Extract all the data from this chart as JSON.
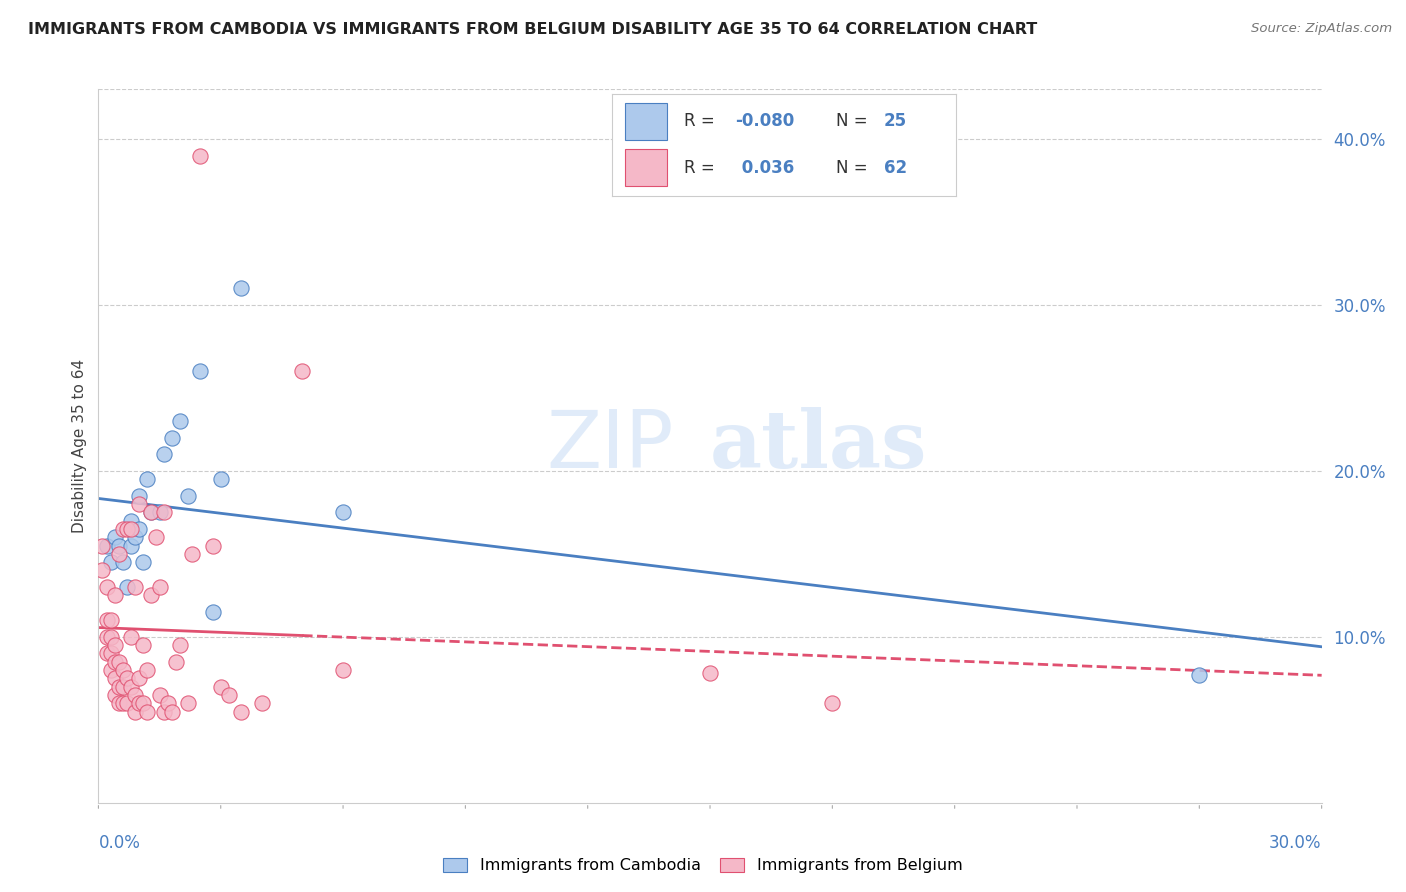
{
  "title": "IMMIGRANTS FROM CAMBODIA VS IMMIGRANTS FROM BELGIUM DISABILITY AGE 35 TO 64 CORRELATION CHART",
  "source": "Source: ZipAtlas.com",
  "ylabel": "Disability Age 35 to 64",
  "right_yticks": [
    "40.0%",
    "30.0%",
    "20.0%",
    "10.0%"
  ],
  "right_ytick_vals": [
    0.4,
    0.3,
    0.2,
    0.1
  ],
  "xmin": 0.0,
  "xmax": 0.3,
  "ymin": 0.0,
  "ymax": 0.43,
  "color_cambodia": "#adc9ec",
  "color_belgium": "#f5b8c8",
  "line_color_cambodia": "#4a7fc1",
  "line_color_belgium": "#e05070",
  "watermark_zip": "ZIP",
  "watermark_atlas": "atlas",
  "cambodia_x": [
    0.002,
    0.003,
    0.004,
    0.005,
    0.006,
    0.007,
    0.008,
    0.008,
    0.009,
    0.01,
    0.01,
    0.011,
    0.012,
    0.013,
    0.015,
    0.016,
    0.018,
    0.02,
    0.022,
    0.025,
    0.028,
    0.03,
    0.035,
    0.06,
    0.27
  ],
  "cambodia_y": [
    0.155,
    0.145,
    0.16,
    0.155,
    0.145,
    0.13,
    0.155,
    0.17,
    0.16,
    0.165,
    0.185,
    0.145,
    0.195,
    0.175,
    0.175,
    0.21,
    0.22,
    0.23,
    0.185,
    0.26,
    0.115,
    0.195,
    0.31,
    0.175,
    0.077
  ],
  "belgium_x": [
    0.001,
    0.001,
    0.002,
    0.002,
    0.002,
    0.002,
    0.003,
    0.003,
    0.003,
    0.003,
    0.004,
    0.004,
    0.004,
    0.004,
    0.004,
    0.005,
    0.005,
    0.005,
    0.005,
    0.006,
    0.006,
    0.006,
    0.006,
    0.007,
    0.007,
    0.007,
    0.008,
    0.008,
    0.008,
    0.009,
    0.009,
    0.009,
    0.01,
    0.01,
    0.01,
    0.011,
    0.011,
    0.012,
    0.012,
    0.013,
    0.013,
    0.014,
    0.015,
    0.015,
    0.016,
    0.016,
    0.017,
    0.018,
    0.019,
    0.02,
    0.022,
    0.023,
    0.025,
    0.028,
    0.03,
    0.032,
    0.035,
    0.04,
    0.05,
    0.06,
    0.15,
    0.18
  ],
  "belgium_y": [
    0.155,
    0.14,
    0.09,
    0.1,
    0.11,
    0.13,
    0.08,
    0.09,
    0.1,
    0.11,
    0.065,
    0.075,
    0.085,
    0.095,
    0.125,
    0.06,
    0.07,
    0.085,
    0.15,
    0.06,
    0.07,
    0.08,
    0.165,
    0.06,
    0.075,
    0.165,
    0.07,
    0.1,
    0.165,
    0.055,
    0.065,
    0.13,
    0.06,
    0.075,
    0.18,
    0.06,
    0.095,
    0.055,
    0.08,
    0.125,
    0.175,
    0.16,
    0.065,
    0.13,
    0.055,
    0.175,
    0.06,
    0.055,
    0.085,
    0.095,
    0.06,
    0.15,
    0.39,
    0.155,
    0.07,
    0.065,
    0.055,
    0.06,
    0.26,
    0.08,
    0.078,
    0.06
  ]
}
